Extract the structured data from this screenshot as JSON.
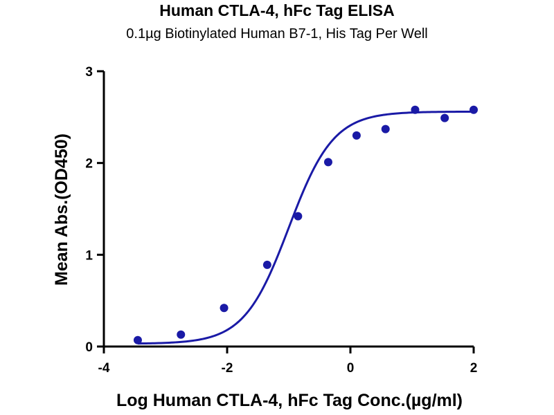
{
  "chart_data": {
    "type": "scatter",
    "title": "Human CTLA-4, hFc Tag ELISA",
    "subtitle": "0.1µg Biotinylated Human B7-1, His Tag Per Well",
    "xlabel": "Log Human CTLA-4, hFc Tag Conc.(µg/ml)",
    "ylabel": "Mean Abs.(OD450)",
    "xlim": [
      -4,
      2
    ],
    "ylim": [
      0,
      3
    ],
    "x_ticks": [
      -4,
      -2,
      0,
      2
    ],
    "y_ticks": [
      0,
      1,
      2,
      3
    ],
    "grid": false,
    "legend": "none",
    "series": [
      {
        "points": [
          {
            "x": -3.45,
            "y": 0.07
          },
          {
            "x": -2.75,
            "y": 0.13
          },
          {
            "x": -2.05,
            "y": 0.42
          },
          {
            "x": -1.35,
            "y": 0.89
          },
          {
            "x": -0.85,
            "y": 1.42
          },
          {
            "x": -0.36,
            "y": 2.01
          },
          {
            "x": 0.1,
            "y": 2.3
          },
          {
            "x": 0.57,
            "y": 2.37
          },
          {
            "x": 1.05,
            "y": 2.58
          },
          {
            "x": 1.53,
            "y": 2.49
          },
          {
            "x": 2.0,
            "y": 2.58
          }
        ],
        "fit": {
          "model": "4PL",
          "bottom": 0.03,
          "top": 2.56,
          "logEC50": -1.0,
          "hill": 1.2,
          "x_range": [
            -3.45,
            2.0
          ]
        }
      }
    ],
    "colors": {
      "marker": "#1a1aa6",
      "curve": "#1a1aa6",
      "axis": "#000000"
    }
  }
}
